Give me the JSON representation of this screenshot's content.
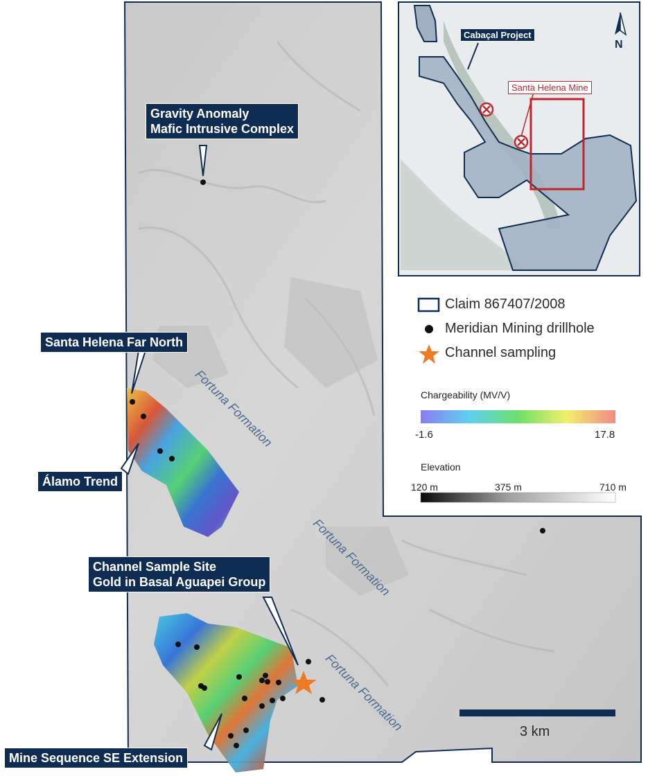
{
  "callouts": {
    "gravity_line1": "Gravity Anomaly",
    "gravity_line2": "Mafic Intrusive Complex",
    "far_north": "Santa Helena Far North",
    "alamo": "Álamo Trend",
    "channel_line1": "Channel Sample Site",
    "channel_line2": "Gold in Basal Aguapei Group",
    "mine_sequence": "Mine Sequence SE Extension"
  },
  "formations": {
    "label": "Fortuna Formation"
  },
  "inset": {
    "project_label": "Cabaçal Project",
    "mine_label": "Santa Helena Mine",
    "north_label": "N"
  },
  "legend": {
    "claim": "Claim 867407/2008",
    "drillhole": "Meridian Mining drillhole",
    "channel": "Channel sampling",
    "chargeability_title": "Chargeability (MV/V)",
    "chargeability_min": "-1.6",
    "chargeability_max": "17.8",
    "elevation_title": "Elevation",
    "elevation_min": "120 m",
    "elevation_mid": "375 m",
    "elevation_max": "710 m"
  },
  "scale_bar": {
    "label": "3 km"
  },
  "colors": {
    "claim_outline": "#0f2d52",
    "callout_bg": "#0f2d52",
    "channel_star": "#f07a22",
    "mine_red": "#c0242c",
    "formation_text": "#4a6a94"
  }
}
